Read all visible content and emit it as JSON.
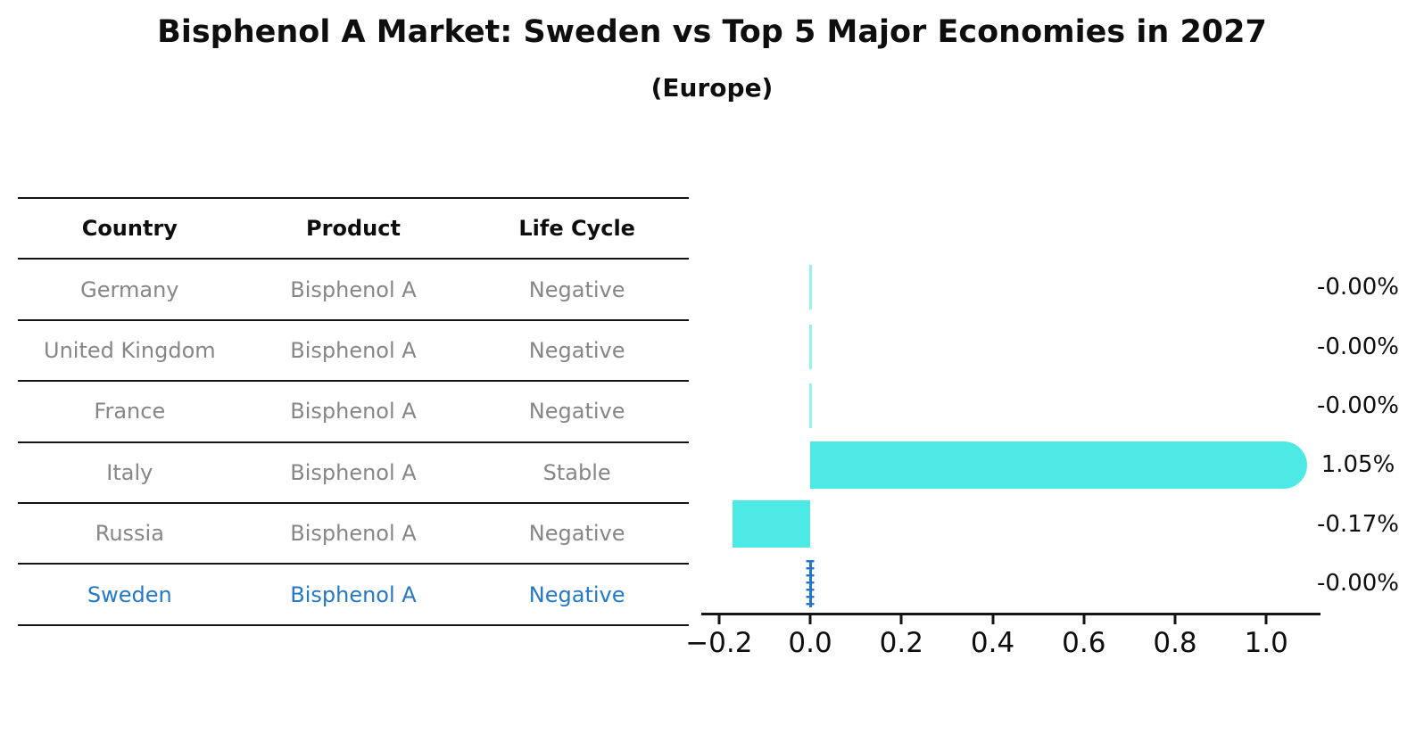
{
  "title": "Bisphenol A Market: Sweden vs Top 5 Major Economies in 2027",
  "subtitle": "(Europe)",
  "table": {
    "headers": [
      "Country",
      "Product",
      "Life Cycle"
    ],
    "rows": [
      {
        "country": "Germany",
        "product": "Bisphenol A",
        "life_cycle": "Negative",
        "highlight": false
      },
      {
        "country": "United Kingdom",
        "product": "Bisphenol A",
        "life_cycle": "Negative",
        "highlight": false
      },
      {
        "country": "France",
        "product": "Bisphenol A",
        "life_cycle": "Negative",
        "highlight": false
      },
      {
        "country": "Italy",
        "product": "Bisphenol A",
        "life_cycle": "Stable",
        "highlight": false
      },
      {
        "country": "Russia",
        "product": "Bisphenol A",
        "life_cycle": "Negative",
        "highlight": false
      },
      {
        "country": "Sweden",
        "product": "Bisphenol A",
        "life_cycle": "Negative",
        "highlight": true
      }
    ]
  },
  "chart_data": {
    "type": "bar",
    "orientation": "horizontal",
    "title": "Bisphenol A Market: Sweden vs Top 5 Major Economies in 2027",
    "subtitle": "(Europe)",
    "categories": [
      "Germany",
      "United Kingdom",
      "France",
      "Italy",
      "Russia",
      "Sweden"
    ],
    "values": [
      -0.0,
      -0.0,
      -0.0,
      1.05,
      -0.17,
      -0.0
    ],
    "value_labels": [
      "-0.00%",
      "-0.00%",
      "-0.00%",
      "1.05%",
      "-0.17%",
      "-0.00%"
    ],
    "unit": "percent",
    "xlim": [
      -0.231,
      1.111
    ],
    "xticks": [
      -0.2,
      0.0,
      0.2,
      0.4,
      0.6,
      0.8,
      1.0
    ],
    "xtick_labels": [
      "−0.2",
      "0.0",
      "0.2",
      "0.4",
      "0.6",
      "0.8",
      "1.0"
    ],
    "highlight_category": "Sweden",
    "grid": false,
    "legend": false
  },
  "colors": {
    "bar": "#4DE9E4",
    "bar_near_zero": "rgba(77,233,228,0.6)",
    "highlight": "#2478C8",
    "text": "#0e0e0e",
    "muted_text": "#868686",
    "line": "#141414",
    "background": "#ffffff"
  }
}
